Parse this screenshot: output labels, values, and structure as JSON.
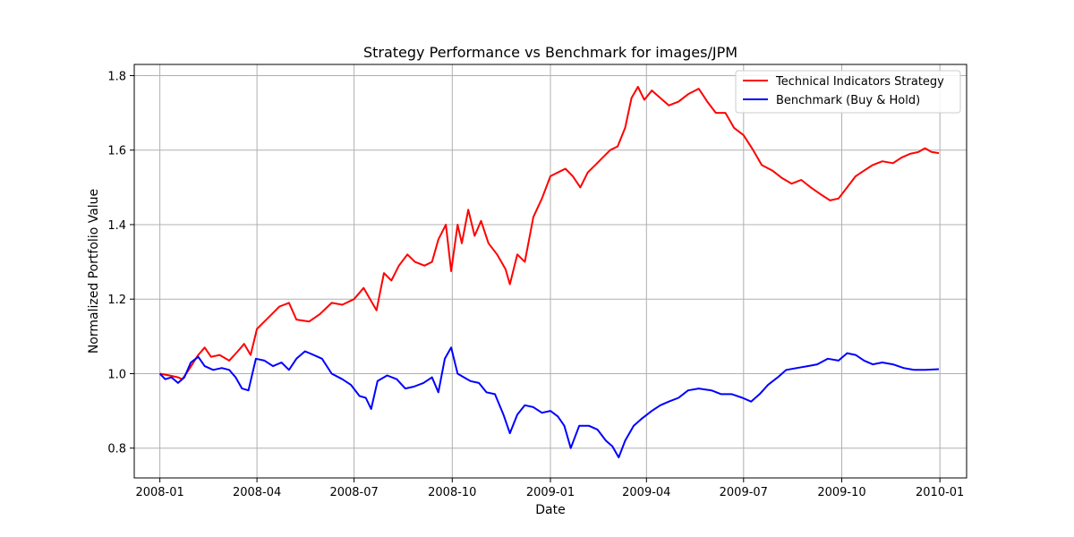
{
  "chart_data": {
    "type": "line",
    "title": "Strategy Performance vs Benchmark for images/JPM",
    "xlabel": "Date",
    "ylabel": "Normalized Portfolio Value",
    "xlim": [
      "2007-12-08",
      "2010-01-26"
    ],
    "ylim": [
      0.72,
      1.83
    ],
    "x_ticks": [
      "2008-01",
      "2008-04",
      "2008-07",
      "2008-10",
      "2009-01",
      "2009-04",
      "2009-07",
      "2009-10",
      "2010-01"
    ],
    "y_ticks": [
      "0.8",
      "1.0",
      "1.2",
      "1.4",
      "1.6",
      "1.8"
    ],
    "grid": true,
    "legend_position": "top-right",
    "series": [
      {
        "name": "Technical Indicators Strategy",
        "color": "#ff0000",
        "points": [
          [
            "2008-01-01",
            1.0
          ],
          [
            "2008-01-10",
            0.995
          ],
          [
            "2008-01-18",
            0.99
          ],
          [
            "2008-01-22",
            0.985
          ],
          [
            "2008-01-28",
            1.01
          ],
          [
            "2008-02-06",
            1.05
          ],
          [
            "2008-02-12",
            1.07
          ],
          [
            "2008-02-18",
            1.045
          ],
          [
            "2008-02-26",
            1.05
          ],
          [
            "2008-03-06",
            1.035
          ],
          [
            "2008-03-14",
            1.06
          ],
          [
            "2008-03-20",
            1.08
          ],
          [
            "2008-03-26",
            1.05
          ],
          [
            "2008-04-01",
            1.12
          ],
          [
            "2008-04-08",
            1.14
          ],
          [
            "2008-04-15",
            1.16
          ],
          [
            "2008-04-22",
            1.18
          ],
          [
            "2008-05-01",
            1.19
          ],
          [
            "2008-05-08",
            1.145
          ],
          [
            "2008-05-20",
            1.14
          ],
          [
            "2008-05-30",
            1.16
          ],
          [
            "2008-06-10",
            1.19
          ],
          [
            "2008-06-20",
            1.185
          ],
          [
            "2008-07-01",
            1.2
          ],
          [
            "2008-07-10",
            1.23
          ],
          [
            "2008-07-16",
            1.2
          ],
          [
            "2008-07-22",
            1.17
          ],
          [
            "2008-07-29",
            1.27
          ],
          [
            "2008-08-05",
            1.25
          ],
          [
            "2008-08-12",
            1.29
          ],
          [
            "2008-08-20",
            1.32
          ],
          [
            "2008-08-27",
            1.3
          ],
          [
            "2008-09-05",
            1.29
          ],
          [
            "2008-09-12",
            1.3
          ],
          [
            "2008-09-18",
            1.36
          ],
          [
            "2008-09-25",
            1.4
          ],
          [
            "2008-09-30",
            1.275
          ],
          [
            "2008-10-06",
            1.4
          ],
          [
            "2008-10-10",
            1.35
          ],
          [
            "2008-10-16",
            1.44
          ],
          [
            "2008-10-22",
            1.37
          ],
          [
            "2008-10-28",
            1.41
          ],
          [
            "2008-11-04",
            1.35
          ],
          [
            "2008-11-12",
            1.32
          ],
          [
            "2008-11-20",
            1.28
          ],
          [
            "2008-11-24",
            1.24
          ],
          [
            "2008-12-01",
            1.32
          ],
          [
            "2008-12-08",
            1.3
          ],
          [
            "2008-12-16",
            1.42
          ],
          [
            "2008-12-24",
            1.47
          ],
          [
            "2009-01-01",
            1.53
          ],
          [
            "2009-01-08",
            1.54
          ],
          [
            "2009-01-15",
            1.55
          ],
          [
            "2009-01-22",
            1.53
          ],
          [
            "2009-01-29",
            1.5
          ],
          [
            "2009-02-05",
            1.54
          ],
          [
            "2009-02-12",
            1.56
          ],
          [
            "2009-02-19",
            1.58
          ],
          [
            "2009-02-26",
            1.6
          ],
          [
            "2009-03-05",
            1.61
          ],
          [
            "2009-03-12",
            1.66
          ],
          [
            "2009-03-18",
            1.74
          ],
          [
            "2009-03-24",
            1.77
          ],
          [
            "2009-03-30",
            1.735
          ],
          [
            "2009-04-06",
            1.76
          ],
          [
            "2009-04-14",
            1.74
          ],
          [
            "2009-04-22",
            1.72
          ],
          [
            "2009-05-01",
            1.73
          ],
          [
            "2009-05-10",
            1.75
          ],
          [
            "2009-05-20",
            1.765
          ],
          [
            "2009-05-28",
            1.73
          ],
          [
            "2009-06-05",
            1.7
          ],
          [
            "2009-06-14",
            1.7
          ],
          [
            "2009-06-22",
            1.66
          ],
          [
            "2009-07-01",
            1.64
          ],
          [
            "2009-07-10",
            1.6
          ],
          [
            "2009-07-18",
            1.56
          ],
          [
            "2009-07-28",
            1.545
          ],
          [
            "2009-08-06",
            1.525
          ],
          [
            "2009-08-15",
            1.51
          ],
          [
            "2009-08-24",
            1.52
          ],
          [
            "2009-09-02",
            1.5
          ],
          [
            "2009-09-12",
            1.48
          ],
          [
            "2009-09-20",
            1.465
          ],
          [
            "2009-09-28",
            1.47
          ],
          [
            "2009-10-06",
            1.5
          ],
          [
            "2009-10-14",
            1.53
          ],
          [
            "2009-10-22",
            1.545
          ],
          [
            "2009-10-30",
            1.56
          ],
          [
            "2009-11-08",
            1.57
          ],
          [
            "2009-11-18",
            1.565
          ],
          [
            "2009-11-26",
            1.58
          ],
          [
            "2009-12-04",
            1.59
          ],
          [
            "2009-12-12",
            1.595
          ],
          [
            "2009-12-18",
            1.605
          ],
          [
            "2009-12-24",
            1.595
          ],
          [
            "2009-12-31",
            1.592
          ]
        ]
      },
      {
        "name": "Benchmark (Buy & Hold)",
        "color": "#0000ff",
        "points": [
          [
            "2008-01-01",
            1.0
          ],
          [
            "2008-01-06",
            0.985
          ],
          [
            "2008-01-12",
            0.99
          ],
          [
            "2008-01-18",
            0.975
          ],
          [
            "2008-01-24",
            0.99
          ],
          [
            "2008-01-30",
            1.03
          ],
          [
            "2008-02-06",
            1.045
          ],
          [
            "2008-02-12",
            1.02
          ],
          [
            "2008-02-20",
            1.01
          ],
          [
            "2008-02-28",
            1.015
          ],
          [
            "2008-03-06",
            1.01
          ],
          [
            "2008-03-12",
            0.99
          ],
          [
            "2008-03-18",
            0.96
          ],
          [
            "2008-03-24",
            0.955
          ],
          [
            "2008-03-31",
            1.04
          ],
          [
            "2008-04-08",
            1.035
          ],
          [
            "2008-04-16",
            1.02
          ],
          [
            "2008-04-24",
            1.03
          ],
          [
            "2008-05-01",
            1.01
          ],
          [
            "2008-05-08",
            1.04
          ],
          [
            "2008-05-16",
            1.06
          ],
          [
            "2008-05-24",
            1.05
          ],
          [
            "2008-06-01",
            1.04
          ],
          [
            "2008-06-10",
            1.0
          ],
          [
            "2008-06-20",
            0.985
          ],
          [
            "2008-06-28",
            0.97
          ],
          [
            "2008-07-06",
            0.94
          ],
          [
            "2008-07-12",
            0.935
          ],
          [
            "2008-07-17",
            0.905
          ],
          [
            "2008-07-23",
            0.98
          ],
          [
            "2008-08-01",
            0.995
          ],
          [
            "2008-08-10",
            0.985
          ],
          [
            "2008-08-18",
            0.96
          ],
          [
            "2008-08-26",
            0.965
          ],
          [
            "2008-09-04",
            0.975
          ],
          [
            "2008-09-12",
            0.99
          ],
          [
            "2008-09-18",
            0.95
          ],
          [
            "2008-09-24",
            1.04
          ],
          [
            "2008-09-30",
            1.07
          ],
          [
            "2008-10-06",
            1.0
          ],
          [
            "2008-10-12",
            0.99
          ],
          [
            "2008-10-18",
            0.98
          ],
          [
            "2008-10-26",
            0.975
          ],
          [
            "2008-11-02",
            0.95
          ],
          [
            "2008-11-10",
            0.945
          ],
          [
            "2008-11-18",
            0.89
          ],
          [
            "2008-11-24",
            0.84
          ],
          [
            "2008-12-01",
            0.89
          ],
          [
            "2008-12-08",
            0.915
          ],
          [
            "2008-12-16",
            0.91
          ],
          [
            "2008-12-24",
            0.895
          ],
          [
            "2009-01-01",
            0.9
          ],
          [
            "2009-01-08",
            0.885
          ],
          [
            "2009-01-14",
            0.86
          ],
          [
            "2009-01-20",
            0.8
          ],
          [
            "2009-01-28",
            0.86
          ],
          [
            "2009-02-06",
            0.86
          ],
          [
            "2009-02-14",
            0.85
          ],
          [
            "2009-02-22",
            0.82
          ],
          [
            "2009-02-28",
            0.805
          ],
          [
            "2009-03-06",
            0.775
          ],
          [
            "2009-03-12",
            0.82
          ],
          [
            "2009-03-20",
            0.86
          ],
          [
            "2009-03-28",
            0.88
          ],
          [
            "2009-04-06",
            0.9
          ],
          [
            "2009-04-14",
            0.915
          ],
          [
            "2009-04-22",
            0.925
          ],
          [
            "2009-05-01",
            0.935
          ],
          [
            "2009-05-10",
            0.955
          ],
          [
            "2009-05-20",
            0.96
          ],
          [
            "2009-06-01",
            0.955
          ],
          [
            "2009-06-10",
            0.945
          ],
          [
            "2009-06-20",
            0.945
          ],
          [
            "2009-06-30",
            0.935
          ],
          [
            "2009-07-08",
            0.925
          ],
          [
            "2009-07-16",
            0.945
          ],
          [
            "2009-07-24",
            0.97
          ],
          [
            "2009-08-02",
            0.99
          ],
          [
            "2009-08-10",
            1.01
          ],
          [
            "2009-08-20",
            1.015
          ],
          [
            "2009-08-30",
            1.02
          ],
          [
            "2009-09-08",
            1.025
          ],
          [
            "2009-09-18",
            1.04
          ],
          [
            "2009-09-28",
            1.035
          ],
          [
            "2009-10-06",
            1.055
          ],
          [
            "2009-10-14",
            1.05
          ],
          [
            "2009-10-22",
            1.035
          ],
          [
            "2009-10-30",
            1.025
          ],
          [
            "2009-11-08",
            1.03
          ],
          [
            "2009-11-18",
            1.025
          ],
          [
            "2009-11-28",
            1.015
          ],
          [
            "2009-12-08",
            1.01
          ],
          [
            "2009-12-18",
            1.01
          ],
          [
            "2009-12-31",
            1.012
          ]
        ]
      }
    ]
  }
}
